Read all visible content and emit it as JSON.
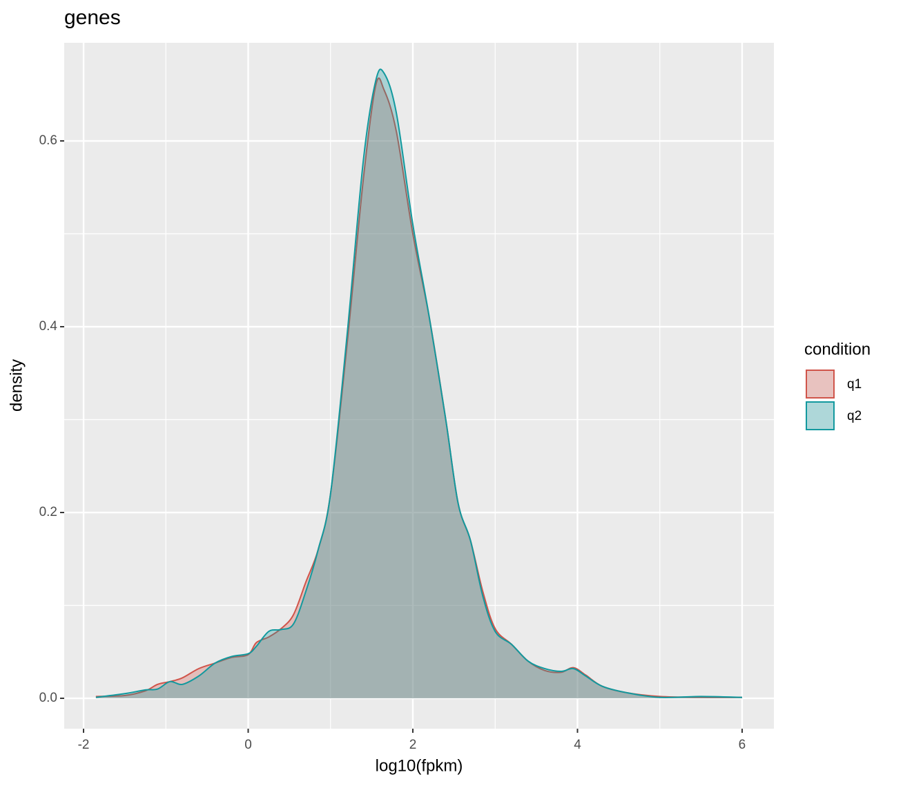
{
  "chart_data": {
    "type": "density",
    "title": "genes",
    "x_label": "log10(fpkm)",
    "y_label": "density",
    "legend_title": "condition",
    "legend_position": "right",
    "grid": true,
    "x": [
      -1.85,
      -1.5,
      -1.25,
      -1.1,
      -0.95,
      -0.8,
      -0.6,
      -0.4,
      -0.2,
      0,
      0.1,
      0.25,
      0.4,
      0.55,
      0.7,
      0.85,
      1.0,
      1.2,
      1.4,
      1.55,
      1.65,
      1.8,
      2.0,
      2.2,
      2.4,
      2.55,
      2.7,
      2.85,
      3.0,
      3.2,
      3.4,
      3.6,
      3.8,
      3.95,
      4.1,
      4.3,
      4.6,
      5.0,
      5.5,
      6.0
    ],
    "series": [
      {
        "name": "q1",
        "color": "#d0544a",
        "values": [
          0.002,
          0.003,
          0.008,
          0.015,
          0.018,
          0.022,
          0.032,
          0.038,
          0.044,
          0.047,
          0.06,
          0.066,
          0.075,
          0.09,
          0.125,
          0.16,
          0.22,
          0.38,
          0.56,
          0.66,
          0.655,
          0.61,
          0.5,
          0.41,
          0.3,
          0.21,
          0.17,
          0.115,
          0.075,
          0.058,
          0.04,
          0.03,
          0.028,
          0.033,
          0.025,
          0.013,
          0.006,
          0.002,
          0.001,
          0.001
        ]
      },
      {
        "name": "q2",
        "color": "#12999e",
        "values": [
          0.001,
          0.005,
          0.009,
          0.01,
          0.018,
          0.015,
          0.024,
          0.038,
          0.045,
          0.048,
          0.056,
          0.072,
          0.074,
          0.08,
          0.115,
          0.16,
          0.22,
          0.39,
          0.58,
          0.665,
          0.673,
          0.63,
          0.51,
          0.41,
          0.3,
          0.21,
          0.17,
          0.11,
          0.072,
          0.058,
          0.04,
          0.032,
          0.029,
          0.032,
          0.024,
          0.013,
          0.006,
          0.001,
          0.002,
          0.001
        ]
      }
    ],
    "xlim": [
      -2.235,
      6.386
    ],
    "xticks": [
      -2,
      0,
      2,
      4,
      6
    ],
    "minor_xticks": [
      -1,
      1,
      3,
      5
    ],
    "ylim": [
      -0.0327,
      0.7056
    ],
    "yticks": [
      {
        "value": 0,
        "label": "0.0"
      },
      0.2,
      0.4,
      0.6
    ],
    "minor_yticks": [
      0.1,
      0.3,
      0.5
    ]
  }
}
